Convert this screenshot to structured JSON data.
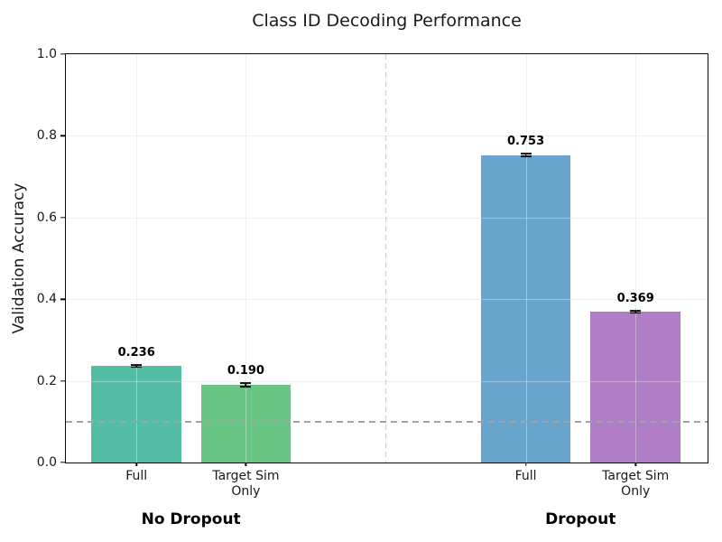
{
  "chart_data": {
    "type": "bar",
    "title": "Class ID Decoding Performance",
    "ylabel": "Validation Accuracy",
    "xlabel": "",
    "ylim": [
      0.0,
      1.0
    ],
    "yticks": [
      "0.0",
      "0.2",
      "0.4",
      "0.6",
      "0.8",
      "1.0"
    ],
    "grid": true,
    "legend": false,
    "chance_line_y": 0.1,
    "bar_width_frac": 0.1403,
    "divider_x_frac": 0.4986,
    "groups": [
      {
        "label": "No Dropout",
        "label_x_frac": 0.195,
        "bars": [
          {
            "category": "Full",
            "category_lines": [
              "Full"
            ],
            "value": 0.236,
            "value_label": "0.236",
            "error": 0.003,
            "color": "#54bda6",
            "x_frac": 0.11
          },
          {
            "category": "Target Sim Only",
            "category_lines": [
              "Target Sim",
              "Only"
            ],
            "value": 0.19,
            "value_label": "0.190",
            "error": 0.005,
            "color": "#68c583",
            "x_frac": 0.2805
          }
        ]
      },
      {
        "label": "Dropout",
        "label_x_frac": 0.802,
        "bars": [
          {
            "category": "Full",
            "category_lines": [
              "Full"
            ],
            "value": 0.753,
            "value_label": "0.753",
            "error": 0.003,
            "color": "#69a4cd",
            "x_frac": 0.7167
          },
          {
            "category": "Target Sim Only",
            "category_lines": [
              "Target Sim",
              "Only"
            ],
            "value": 0.369,
            "value_label": "0.369",
            "error": 0.003,
            "color": "#b07ec6",
            "x_frac": 0.8878
          }
        ]
      }
    ],
    "colors": {
      "spine": "#0a0a0a",
      "grid": "#e8e8e8",
      "grid_over_bars": "rgba(255,255,255,0.35)",
      "chance_line": "#a3a3a3",
      "divider": "#c9c9c9",
      "error_bar": "#111111",
      "tick": "#0a0a0a",
      "value_label": "#000000",
      "tick_label": "#1a1a1a"
    }
  }
}
